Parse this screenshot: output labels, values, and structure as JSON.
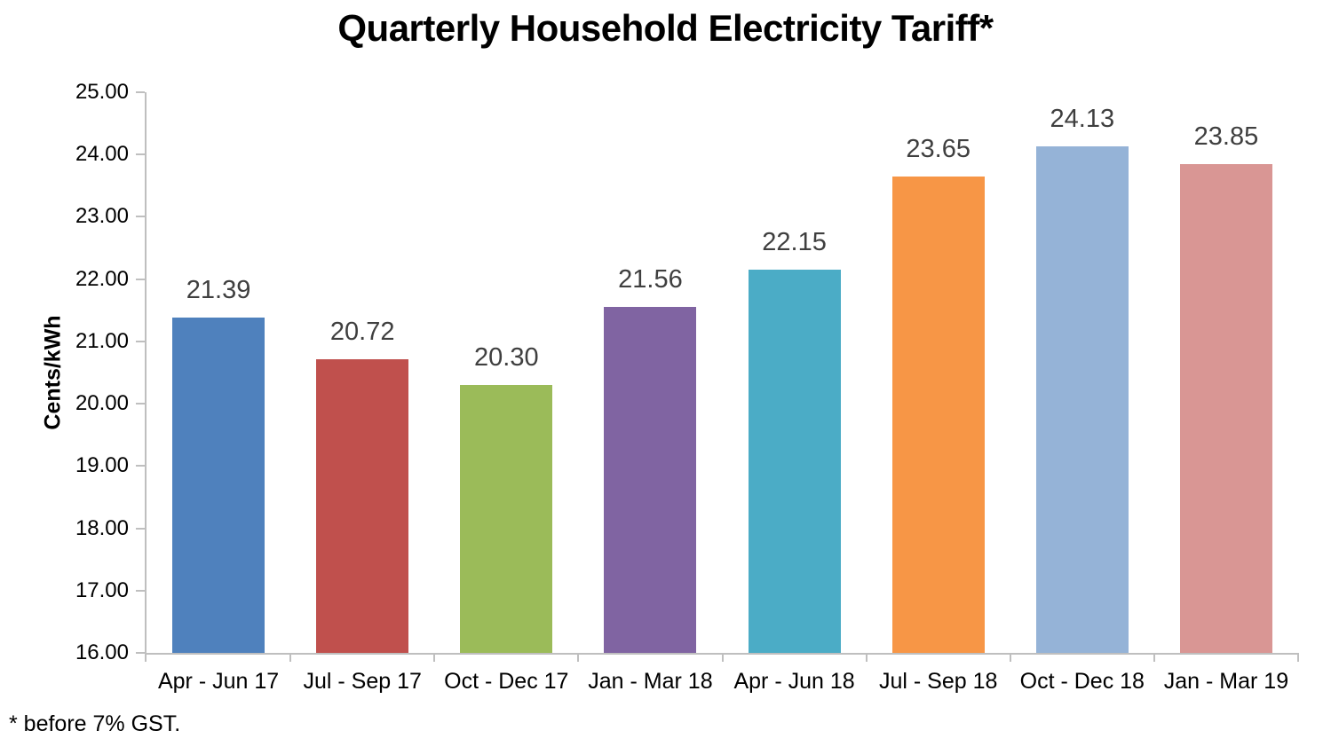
{
  "title": "Quarterly Household Electricity Tariff*",
  "footnote": "* before 7% GST.",
  "chart_data": {
    "type": "bar",
    "title": "Quarterly Household Electricity Tariff*",
    "categories": [
      "Apr - Jun 17",
      "Jul - Sep 17",
      "Oct - Dec 17",
      "Jan - Mar 18",
      "Apr - Jun 18",
      "Jul - Sep 18",
      "Oct - Dec 18",
      "Jan - Mar 19"
    ],
    "values": [
      21.39,
      20.72,
      20.3,
      21.56,
      22.15,
      23.65,
      24.13,
      23.85
    ],
    "value_labels": [
      "21.39",
      "20.72",
      "20.30",
      "21.56",
      "22.15",
      "23.65",
      "24.13",
      "23.85"
    ],
    "bar_colors": [
      "#4F81BD",
      "#C0504D",
      "#9BBB59",
      "#8064A2",
      "#4BACC6",
      "#F79646",
      "#95B3D7",
      "#D99694"
    ],
    "xlabel": "",
    "ylabel": "Cents/kWh",
    "ylim": [
      16,
      25
    ],
    "ytick_step": 1,
    "ytick_labels": [
      "16.00",
      "17.00",
      "18.00",
      "19.00",
      "20.00",
      "21.00",
      "22.00",
      "23.00",
      "24.00",
      "25.00"
    ],
    "grid": false,
    "legend": "none",
    "axis_color": "#BFBFBF",
    "value_label_color": "#3F3F3F"
  }
}
